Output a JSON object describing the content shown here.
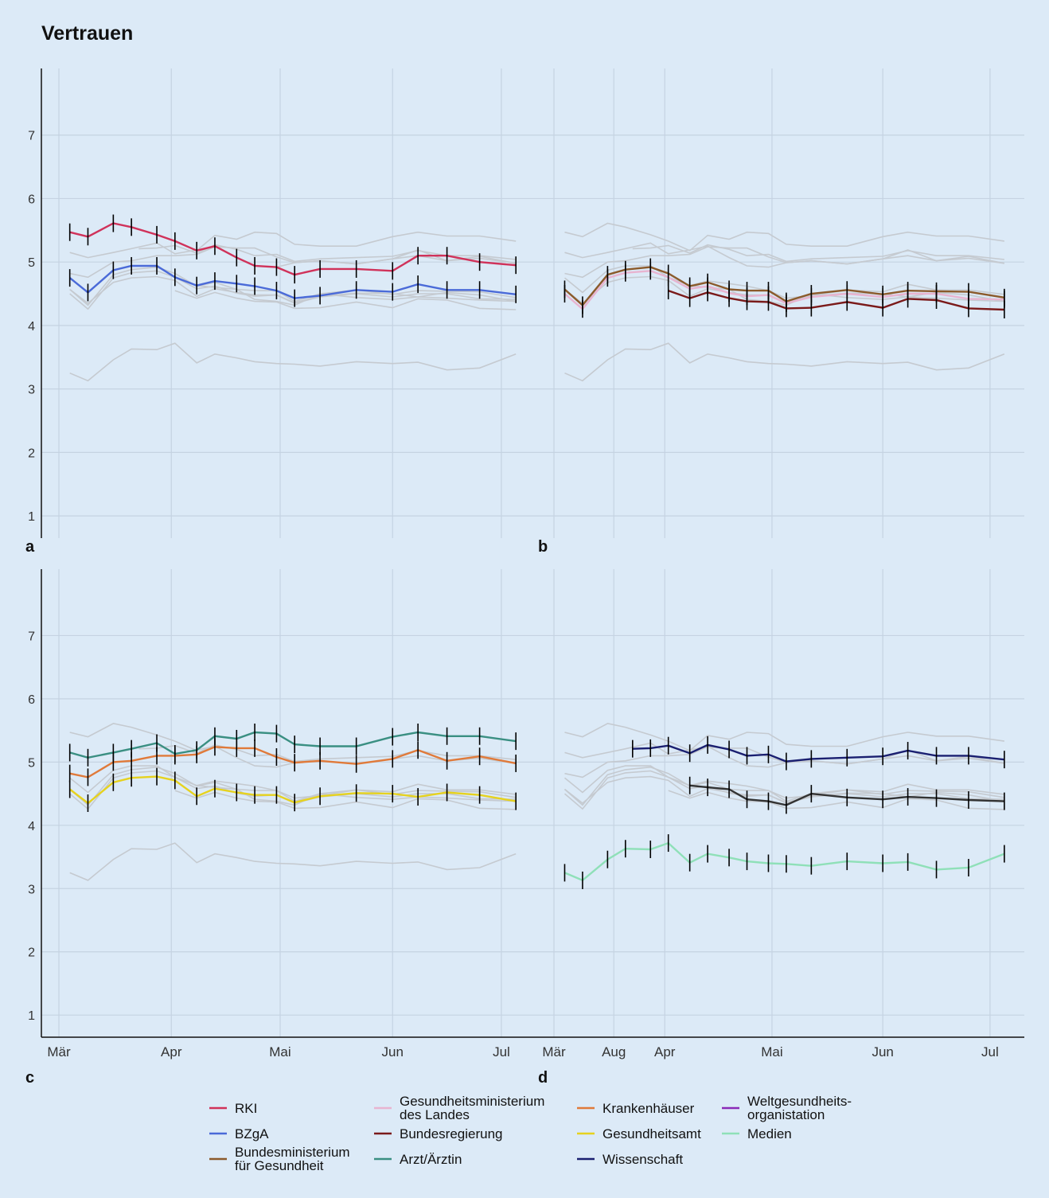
{
  "title": "Vertrauen",
  "colors": {
    "background": "#dceaf7",
    "grid": "#c5d3e2",
    "context": "#c5cad0",
    "errorbar": "#000000"
  },
  "legend": [
    {
      "label": "RKI",
      "color": "#d0325a"
    },
    {
      "label": "BZgA",
      "color": "#4a6ad8"
    },
    {
      "label": "Bundesministerium\nfür Gesundheit",
      "color": "#8b5a2b"
    },
    {
      "label": "Gesundheitsministerium\ndes Landes",
      "color": "#e8b4d0"
    },
    {
      "label": "Bundesregierung",
      "color": "#7a1a1a"
    },
    {
      "label": "Arzt/Ärztin",
      "color": "#3a8f82"
    },
    {
      "label": "Krankenhäuser",
      "color": "#e07a3a"
    },
    {
      "label": "Gesundheitsamt",
      "color": "#e6d21e"
    },
    {
      "label": "Wissenschaft",
      "color": "#1a1f70"
    },
    {
      "label": "Weltgesundheits-\norganistation",
      "color": "#8a2ab8"
    },
    {
      "label": "Medien",
      "color": "#8fe0b8"
    }
  ],
  "chart_data": [
    {
      "type": "line",
      "panel": "a",
      "x_ticks": [
        "Mär",
        "Apr",
        "Mai",
        "Jun",
        "Jul",
        "Aug"
      ],
      "y_ticks": [
        1,
        2,
        3,
        4,
        5,
        6,
        7
      ],
      "ylim": [
        0.65,
        8.05
      ],
      "grid": true,
      "series": [
        {
          "name": "RKI",
          "x": [
            3,
            8,
            15,
            20,
            27,
            32,
            38,
            43,
            49,
            54,
            60,
            65,
            72,
            82,
            92,
            99,
            107,
            116,
            126
          ],
          "y": [
            5.47,
            5.4,
            5.61,
            5.55,
            5.43,
            5.33,
            5.18,
            5.25,
            5.07,
            4.94,
            4.92,
            4.8,
            4.89,
            4.89,
            4.86,
            5.1,
            5.1,
            5.0,
            4.95
          ]
        },
        {
          "name": "BZgA",
          "x": [
            3,
            8,
            15,
            20,
            27,
            32,
            38,
            43,
            49,
            54,
            60,
            65,
            72,
            82,
            92,
            99,
            107,
            116,
            126
          ],
          "y": [
            4.75,
            4.52,
            4.87,
            4.94,
            4.94,
            4.76,
            4.63,
            4.7,
            4.66,
            4.62,
            4.55,
            4.43,
            4.47,
            4.56,
            4.53,
            4.65,
            4.56,
            4.56,
            4.49
          ]
        }
      ]
    },
    {
      "type": "line",
      "panel": "b",
      "x_ticks": [
        "Mär",
        "Apr",
        "Mai",
        "Jun",
        "Jul",
        "Aug"
      ],
      "y_ticks": [
        1,
        2,
        3,
        4,
        5,
        6,
        7
      ],
      "ylim": [
        0.65,
        8.05
      ],
      "grid": true,
      "series": [
        {
          "name": "Gesundheitsministerium des Landes",
          "x": [
            3,
            8,
            15,
            20,
            27,
            32,
            38,
            43,
            49,
            54,
            60,
            65,
            72,
            82,
            92,
            99,
            107,
            116,
            126
          ],
          "y": [
            4.5,
            4.26,
            4.75,
            4.83,
            4.86,
            4.76,
            4.58,
            4.62,
            4.51,
            4.46,
            4.48,
            4.35,
            4.45,
            4.5,
            4.45,
            4.5,
            4.5,
            4.42,
            4.41
          ]
        },
        {
          "name": "Bundesministerium für Gesundheit",
          "x": [
            3,
            8,
            15,
            20,
            27,
            32,
            38,
            43,
            49,
            54,
            60,
            65,
            72,
            82,
            92,
            99,
            107,
            116,
            126
          ],
          "y": [
            4.57,
            4.32,
            4.8,
            4.88,
            4.92,
            4.82,
            4.62,
            4.68,
            4.57,
            4.55,
            4.55,
            4.38,
            4.5,
            4.56,
            4.49,
            4.55,
            4.54,
            4.53,
            4.44
          ]
        },
        {
          "name": "Bundesregierung",
          "x": [
            32,
            38,
            43,
            49,
            54,
            60,
            65,
            72,
            82,
            92,
            99,
            107,
            116,
            126
          ],
          "y": [
            4.55,
            4.43,
            4.52,
            4.43,
            4.38,
            4.37,
            4.27,
            4.28,
            4.37,
            4.28,
            4.42,
            4.4,
            4.27,
            4.25
          ]
        }
      ]
    },
    {
      "type": "line",
      "panel": "c",
      "x_ticks": [
        "Mär",
        "Apr",
        "Mai",
        "Jun",
        "Jul",
        "Aug"
      ],
      "y_ticks": [
        1,
        2,
        3,
        4,
        5,
        6,
        7
      ],
      "ylim": [
        0.65,
        8.05
      ],
      "grid": true,
      "series": [
        {
          "name": "Arzt/Ärztin",
          "x": [
            3,
            8,
            15,
            20,
            27,
            32,
            38,
            43,
            49,
            54,
            60,
            65,
            72,
            82,
            92,
            99,
            107,
            116,
            126
          ],
          "y": [
            5.15,
            5.07,
            5.15,
            5.21,
            5.3,
            5.13,
            5.19,
            5.41,
            5.37,
            5.47,
            5.45,
            5.28,
            5.25,
            5.25,
            5.4,
            5.47,
            5.41,
            5.41,
            5.33
          ]
        },
        {
          "name": "Krankenhäuser",
          "x": [
            3,
            8,
            15,
            20,
            27,
            32,
            38,
            43,
            49,
            54,
            60,
            65,
            72,
            82,
            92,
            99,
            107,
            116,
            126
          ],
          "y": [
            4.82,
            4.76,
            5.0,
            5.02,
            5.1,
            5.1,
            5.12,
            5.24,
            5.22,
            5.22,
            5.08,
            4.99,
            5.02,
            4.97,
            5.05,
            5.19,
            5.02,
            5.09,
            4.98
          ]
        },
        {
          "name": "Gesundheitsamt",
          "x": [
            3,
            8,
            15,
            20,
            27,
            32,
            38,
            43,
            49,
            54,
            60,
            65,
            72,
            82,
            92,
            99,
            107,
            116,
            126
          ],
          "y": [
            4.57,
            4.35,
            4.68,
            4.75,
            4.77,
            4.71,
            4.46,
            4.58,
            4.52,
            4.48,
            4.48,
            4.36,
            4.46,
            4.51,
            4.5,
            4.45,
            4.52,
            4.48,
            4.38
          ]
        }
      ]
    },
    {
      "type": "line",
      "panel": "d",
      "x_ticks": [
        "Mär",
        "Apr",
        "Mai",
        "Jun",
        "Jul",
        "Aug"
      ],
      "y_ticks": [
        1,
        2,
        3,
        4,
        5,
        6,
        7
      ],
      "ylim": [
        0.65,
        8.05
      ],
      "grid": true,
      "series": [
        {
          "name": "Wissenschaft",
          "x": [
            22,
            27,
            32,
            38,
            43,
            49,
            54,
            60,
            65,
            72,
            82,
            92,
            99,
            107,
            116,
            126
          ],
          "y": [
            5.21,
            5.22,
            5.26,
            5.14,
            5.27,
            5.2,
            5.1,
            5.12,
            5.01,
            5.05,
            5.07,
            5.09,
            5.18,
            5.1,
            5.1,
            5.04
          ]
        },
        {
          "name": "Weltgesundheits-organistation",
          "x": [
            38,
            43,
            49,
            54,
            60,
            65,
            72,
            82,
            92,
            99,
            107,
            116,
            126
          ],
          "y": [
            4.63,
            4.6,
            4.57,
            4.41,
            4.38,
            4.32,
            4.5,
            4.44,
            4.41,
            4.45,
            4.43,
            4.4,
            4.38
          ]
        },
        {
          "name": "Medien",
          "x": [
            3,
            8,
            15,
            20,
            27,
            32,
            38,
            43,
            49,
            54,
            60,
            65,
            72,
            82,
            92,
            99,
            107,
            116,
            126
          ],
          "y": [
            3.25,
            3.13,
            3.46,
            3.63,
            3.62,
            3.72,
            3.41,
            3.55,
            3.49,
            3.43,
            3.4,
            3.39,
            3.36,
            3.43,
            3.4,
            3.42,
            3.3,
            3.33,
            3.55
          ]
        }
      ]
    }
  ],
  "context_lines": [
    {
      "x": [
        3,
        8,
        15,
        20,
        27,
        32,
        38,
        43,
        49,
        54,
        60,
        65,
        72,
        82,
        92,
        99,
        107,
        116,
        126
      ],
      "y": [
        5.47,
        5.4,
        5.61,
        5.55,
        5.43,
        5.33,
        5.18,
        5.42,
        5.36,
        5.47,
        5.45,
        5.28,
        5.25,
        5.25,
        5.4,
        5.47,
        5.41,
        5.41,
        5.33
      ]
    },
    {
      "x": [
        3,
        8,
        15,
        20,
        27,
        32,
        38,
        43,
        49,
        54,
        60,
        65,
        72,
        82,
        92,
        99,
        107,
        116,
        126
      ],
      "y": [
        5.15,
        5.07,
        5.15,
        5.21,
        5.3,
        5.13,
        5.19,
        5.25,
        5.07,
        4.94,
        4.92,
        4.99,
        5.02,
        4.97,
        5.05,
        5.19,
        5.02,
        5.09,
        4.98
      ]
    },
    {
      "x": [
        22,
        27,
        32,
        38,
        43,
        49,
        54,
        60,
        65,
        72,
        82,
        92,
        99,
        107,
        116,
        126
      ],
      "y": [
        5.21,
        5.22,
        5.26,
        5.14,
        5.27,
        5.2,
        5.1,
        5.12,
        5.01,
        5.05,
        5.07,
        5.09,
        5.18,
        5.1,
        5.1,
        5.04
      ]
    },
    {
      "x": [
        3,
        8,
        15,
        20,
        27,
        32,
        38,
        43,
        49,
        54,
        60,
        65,
        72,
        82,
        92,
        99,
        107,
        116,
        126
      ],
      "y": [
        4.82,
        4.76,
        5.0,
        5.02,
        5.1,
        5.1,
        5.12,
        5.24,
        5.22,
        5.22,
        5.08,
        4.99,
        5.02,
        4.97,
        5.05,
        5.1,
        5.02,
        5.06,
        4.98
      ]
    },
    {
      "x": [
        3,
        8,
        15,
        20,
        27,
        32,
        38,
        43,
        49,
        54,
        60,
        65,
        72,
        82,
        92,
        99,
        107,
        116,
        126
      ],
      "y": [
        4.75,
        4.52,
        4.87,
        4.94,
        4.94,
        4.76,
        4.63,
        4.7,
        4.66,
        4.62,
        4.55,
        4.43,
        4.47,
        4.56,
        4.53,
        4.65,
        4.56,
        4.56,
        4.49
      ]
    },
    {
      "x": [
        3,
        8,
        15,
        20,
        27,
        32,
        38,
        43,
        49,
        54,
        60,
        65,
        72,
        82,
        92,
        99,
        107,
        116,
        126
      ],
      "y": [
        4.57,
        4.32,
        4.8,
        4.88,
        4.92,
        4.82,
        4.62,
        4.68,
        4.57,
        4.55,
        4.55,
        4.38,
        4.5,
        4.56,
        4.49,
        4.55,
        4.54,
        4.53,
        4.44
      ]
    },
    {
      "x": [
        3,
        8,
        15,
        20,
        27,
        32,
        38,
        43,
        49,
        54,
        60,
        65,
        72,
        82,
        92,
        99,
        107,
        116,
        126
      ],
      "y": [
        4.57,
        4.35,
        4.68,
        4.75,
        4.77,
        4.71,
        4.46,
        4.58,
        4.52,
        4.48,
        4.48,
        4.36,
        4.46,
        4.51,
        4.5,
        4.45,
        4.52,
        4.48,
        4.38
      ]
    },
    {
      "x": [
        3,
        8,
        15,
        20,
        27,
        32,
        38,
        43,
        49,
        54,
        60,
        65,
        72,
        82,
        92,
        99,
        107,
        116,
        126
      ],
      "y": [
        4.5,
        4.26,
        4.75,
        4.83,
        4.86,
        4.76,
        4.58,
        4.62,
        4.51,
        4.46,
        4.48,
        4.35,
        4.45,
        4.5,
        4.45,
        4.5,
        4.5,
        4.42,
        4.41
      ]
    },
    {
      "x": [
        32,
        38,
        43,
        49,
        54,
        60,
        65,
        72,
        82,
        92,
        99,
        107,
        116,
        126
      ],
      "y": [
        4.55,
        4.43,
        4.52,
        4.43,
        4.38,
        4.37,
        4.27,
        4.28,
        4.37,
        4.28,
        4.42,
        4.4,
        4.27,
        4.25
      ]
    },
    {
      "x": [
        38,
        43,
        49,
        54,
        60,
        65,
        72,
        82,
        92,
        99,
        107,
        116,
        126
      ],
      "y": [
        4.63,
        4.6,
        4.57,
        4.41,
        4.38,
        4.32,
        4.5,
        4.44,
        4.41,
        4.45,
        4.43,
        4.4,
        4.38
      ]
    },
    {
      "x": [
        3,
        8,
        15,
        20,
        27,
        32,
        38,
        43,
        49,
        54,
        60,
        65,
        72,
        82,
        92,
        99,
        107,
        116,
        126
      ],
      "y": [
        3.25,
        3.13,
        3.46,
        3.63,
        3.62,
        3.72,
        3.41,
        3.55,
        3.49,
        3.43,
        3.4,
        3.39,
        3.36,
        3.43,
        3.4,
        3.42,
        3.3,
        3.33,
        3.55
      ]
    }
  ]
}
